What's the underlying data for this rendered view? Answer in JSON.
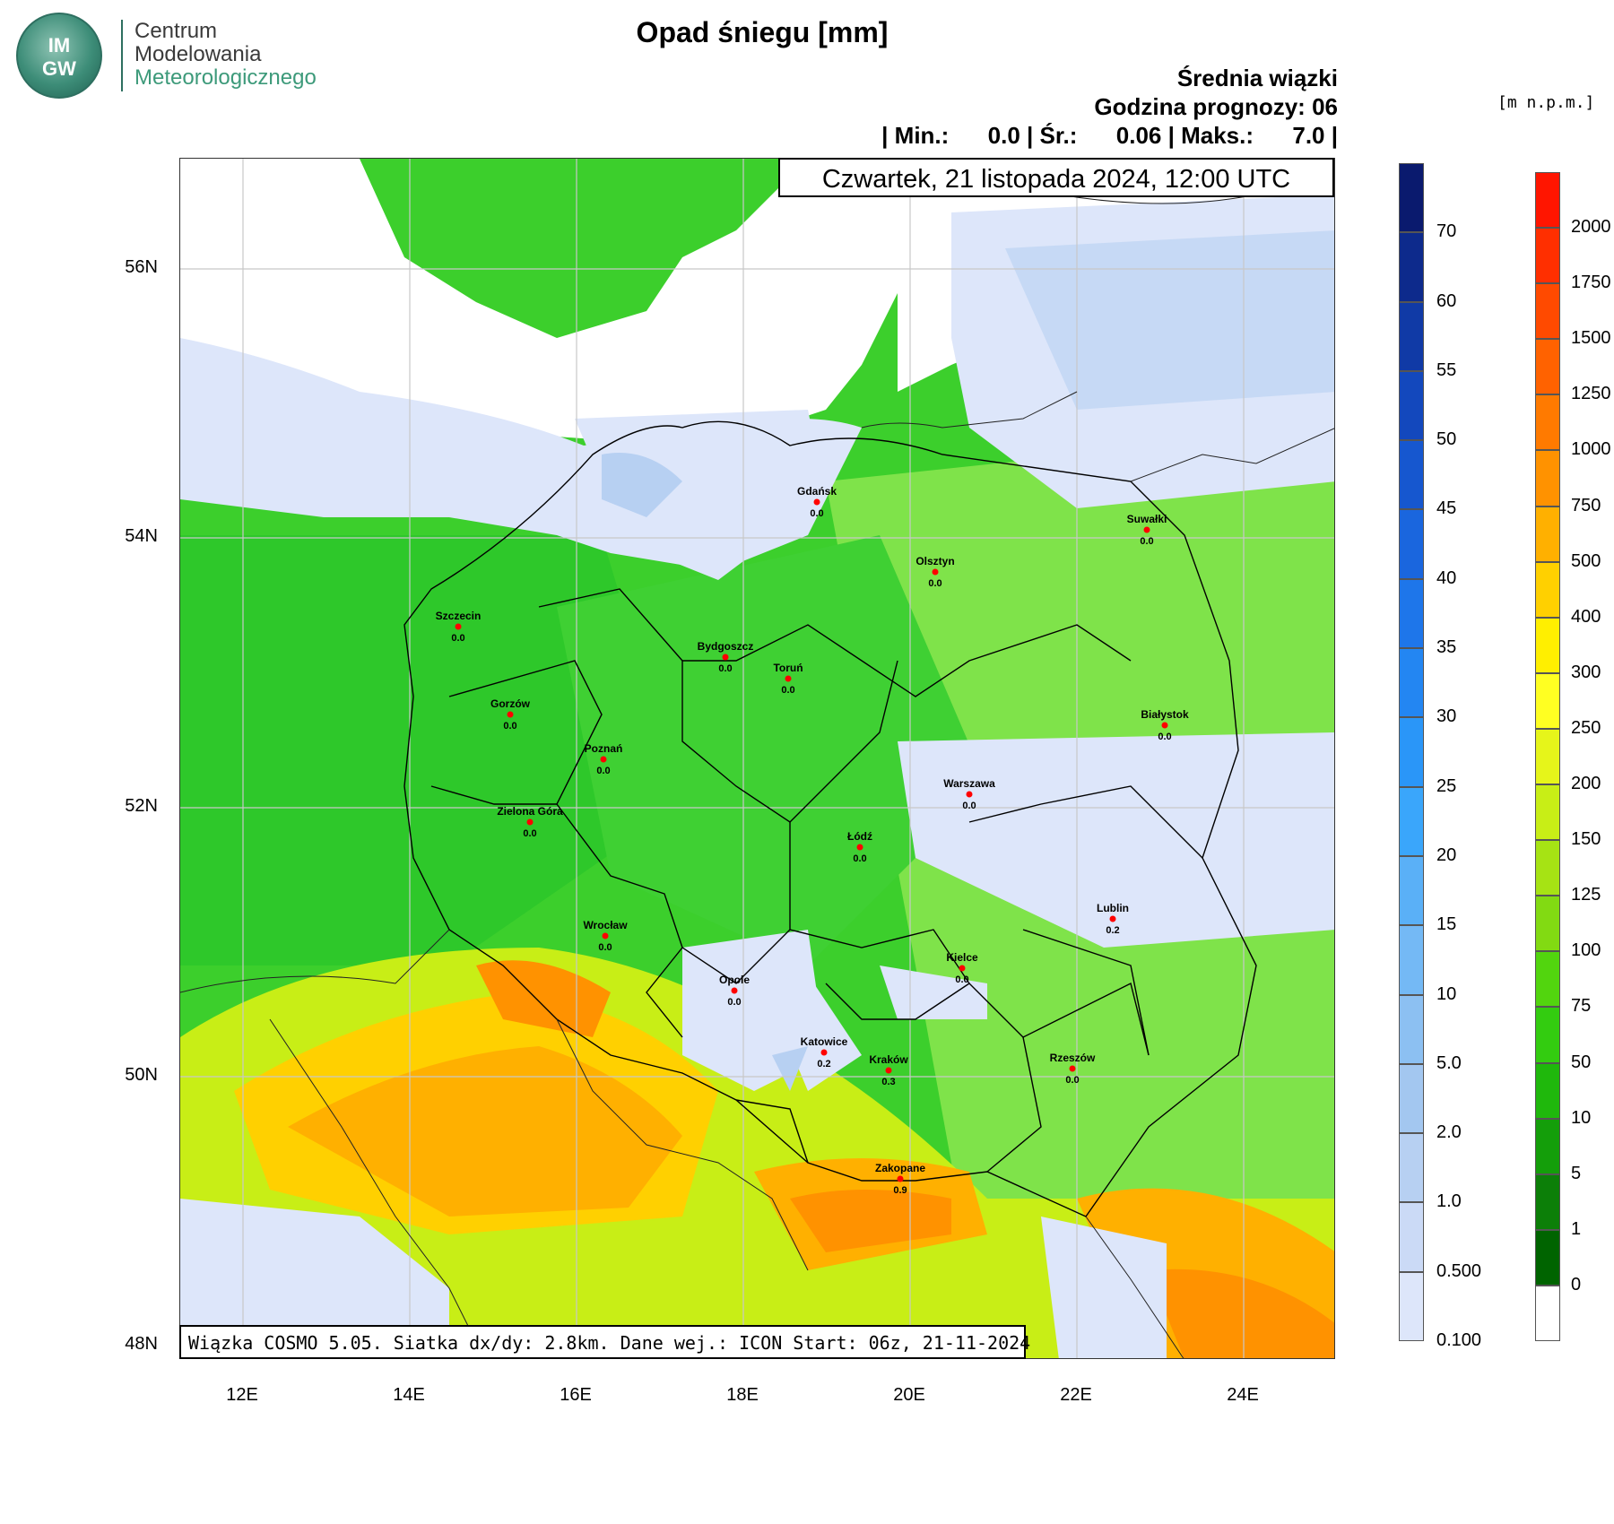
{
  "logo": {
    "badge_top": "IM",
    "badge_bottom": "GW",
    "line1": "Centrum",
    "line2": "Modelowania",
    "line3": "Meteorologicznego"
  },
  "title": "Opad śniegu [mm]",
  "header": {
    "line1": "Średnia wiązki",
    "line2": "Godzina prognozy: 06",
    "line3": "| Min.:      0.0 | Śr.:      0.06 | Maks.:      7.0 |"
  },
  "date_label": "Czwartek, 21 listopada 2024, 12:00 UTC",
  "info": "Wiązka COSMO 5.05. Siatka dx/dy: 2.8km. Dane wej.: ICON Start: 06z, 21-11-2024",
  "lat_labels": [
    "56N",
    "54N",
    "52N",
    "50N",
    "48N"
  ],
  "lon_labels": [
    "12E",
    "14E",
    "16E",
    "18E",
    "20E",
    "22E",
    "24E"
  ],
  "cities": [
    {
      "name": "Gdańsk",
      "value": "0.0"
    },
    {
      "name": "Suwałki",
      "value": "0.0"
    },
    {
      "name": "Olsztyn",
      "value": "0.0"
    },
    {
      "name": "Szczecin",
      "value": "0.0"
    },
    {
      "name": "Bydgoszcz",
      "value": "0.0"
    },
    {
      "name": "Toruń",
      "value": "0.0"
    },
    {
      "name": "Białystok",
      "value": "0.0"
    },
    {
      "name": "Gorzów",
      "value": "0.0"
    },
    {
      "name": "Poznań",
      "value": "0.0"
    },
    {
      "name": "Warszawa",
      "value": "0.0"
    },
    {
      "name": "Zielona Góra",
      "value": "0.0"
    },
    {
      "name": "Łódź",
      "value": "0.0"
    },
    {
      "name": "Lublin",
      "value": "0.2"
    },
    {
      "name": "Wrocław",
      "value": "0.0"
    },
    {
      "name": "Kielce",
      "value": "0.0"
    },
    {
      "name": "Opole",
      "value": "0.0"
    },
    {
      "name": "Katowice",
      "value": "0.2"
    },
    {
      "name": "Kraków",
      "value": "0.3"
    },
    {
      "name": "Rzeszów",
      "value": "0.0"
    },
    {
      "name": "Zakopane",
      "value": "0.9"
    }
  ],
  "snow_scale": {
    "labels": [
      "70",
      "60",
      "55",
      "50",
      "45",
      "40",
      "35",
      "30",
      "25",
      "20",
      "15",
      "10",
      "5.0",
      "2.0",
      "1.0",
      "0.500",
      "0.100"
    ],
    "colors": [
      "#0a1a6e",
      "#0d2a8c",
      "#103aa6",
      "#1348bd",
      "#1657cf",
      "#1a66de",
      "#1e76ea",
      "#2386f2",
      "#2a96f8",
      "#3aa6fb",
      "#5ab0f7",
      "#74b9f5",
      "#8cc0f2",
      "#a3c7f0",
      "#b7d0f2",
      "#cbdaf6",
      "#dde6fa"
    ]
  },
  "height_scale": {
    "unit": "[m n.p.m.]",
    "labels": [
      "2000",
      "1750",
      "1500",
      "1250",
      "1000",
      "750",
      "500",
      "400",
      "300",
      "250",
      "200",
      "150",
      "125",
      "100",
      "75",
      "50",
      "10",
      "5",
      "1",
      "0"
    ],
    "colors": [
      "#ff1500",
      "#ff2f00",
      "#ff4a00",
      "#ff6200",
      "#ff7a00",
      "#ff9200",
      "#ffb000",
      "#ffd000",
      "#ffef00",
      "#ffff22",
      "#e6f51a",
      "#c8ee16",
      "#a6e314",
      "#82da12",
      "#52d50e",
      "#33cc10",
      "#1fb80c",
      "#149e0a",
      "#0c7f08",
      "#006400",
      "#ffffff"
    ]
  }
}
